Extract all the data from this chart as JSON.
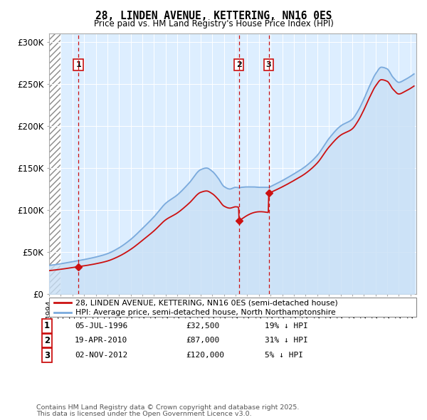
{
  "title": "28, LINDEN AVENUE, KETTERING, NN16 0ES",
  "subtitle": "Price paid vs. HM Land Registry's House Price Index (HPI)",
  "xlim": [
    1994.0,
    2025.5
  ],
  "ylim": [
    0,
    310000
  ],
  "yticks": [
    0,
    50000,
    100000,
    150000,
    200000,
    250000,
    300000
  ],
  "ytick_labels": [
    "£0",
    "£50K",
    "£100K",
    "£150K",
    "£200K",
    "£250K",
    "£300K"
  ],
  "transactions": [
    {
      "num": 1,
      "date": "05-JUL-1996",
      "price": 32500,
      "year": 1996.51,
      "pct": "19%",
      "dir": "↓"
    },
    {
      "num": 2,
      "date": "19-APR-2010",
      "price": 87000,
      "year": 2010.29,
      "pct": "31%",
      "dir": "↓"
    },
    {
      "num": 3,
      "date": "02-NOV-2012",
      "price": 120000,
      "year": 2012.84,
      "pct": "5%",
      "dir": "↓"
    }
  ],
  "hpi_color": "#7aaadd",
  "hpi_fill": "#c8dff5",
  "price_color": "#cc1111",
  "legend_label_price": "28, LINDEN AVENUE, KETTERING, NN16 0ES (semi-detached house)",
  "legend_label_hpi": "HPI: Average price, semi-detached house, North Northamptonshire",
  "footer1": "Contains HM Land Registry data © Crown copyright and database right 2025.",
  "footer2": "This data is licensed under the Open Government Licence v3.0.",
  "hatch_end_year": 1995.0,
  "background_color": "#ddeeff",
  "grid_color": "#ffffff"
}
